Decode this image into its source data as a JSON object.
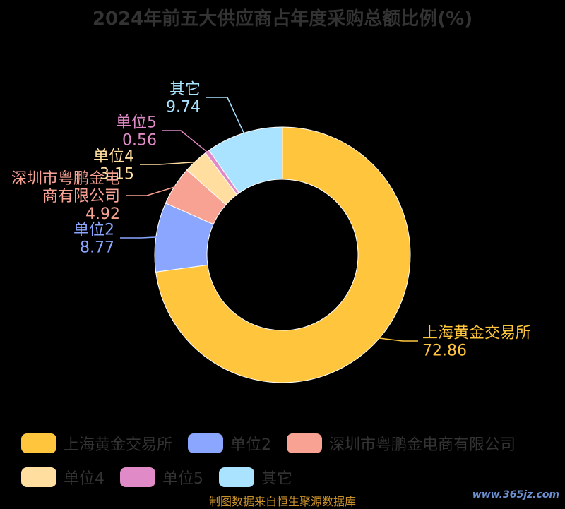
{
  "title": "2024年前五大供应商占年度采购总额比例(%)",
  "chart_data": {
    "type": "pie",
    "title": "2024年前五大供应商占年度采购总额比例(%)",
    "donut": true,
    "series": [
      {
        "name": "上海黄金交易所",
        "value": 72.86,
        "color": "#ffc53d",
        "label_lines": [
          "上海黄金交易所",
          "72.86"
        ]
      },
      {
        "name": "单位2",
        "value": 8.77,
        "color": "#8aa6ff",
        "label_lines": [
          "单位2",
          "8.77"
        ]
      },
      {
        "name": "深圳市粤鹏金电商有限公司",
        "value": 4.92,
        "color": "#f8a294",
        "label_lines": [
          "深圳市粤鹏金电",
          "商有限公司",
          "4.92"
        ]
      },
      {
        "name": "单位4",
        "value": 3.15,
        "color": "#ffdea0",
        "label_lines": [
          "单位4",
          "3.15"
        ]
      },
      {
        "name": "单位5",
        "value": 0.56,
        "color": "#e08bc7",
        "label_lines": [
          "单位5",
          "0.56"
        ]
      },
      {
        "name": "其它",
        "value": 9.74,
        "color": "#a9e3ff",
        "label_lines": [
          "其它",
          "9.74"
        ]
      }
    ],
    "legend_position": "bottom"
  },
  "legend": {
    "row1": [
      "上海黄金交易所",
      "单位2",
      "深圳市粤鹏金电商有限公司"
    ],
    "row2": [
      "单位4",
      "单位5",
      "其它"
    ]
  },
  "source": "制图数据来自恒生聚源数据库",
  "watermark": "www.365jz.com"
}
